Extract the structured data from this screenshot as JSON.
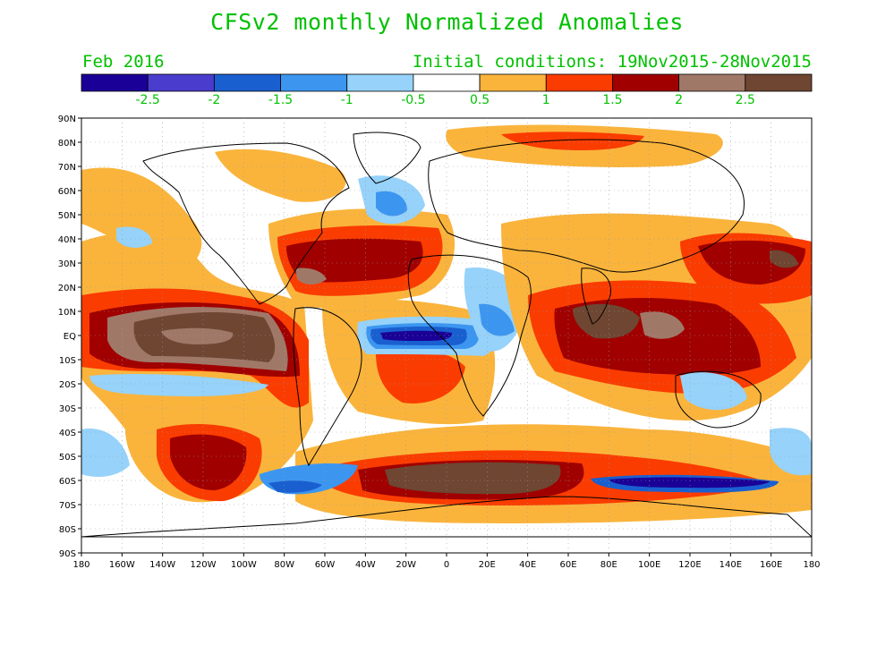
{
  "title": "CFSv2 monthly Normalized Anomalies",
  "month": "Feb 2016",
  "initial_conditions": "Initial conditions: 19Nov2015-28Nov2015",
  "colorbar": {
    "colors": [
      "#1a0096",
      "#4a3ccd",
      "#1a5fd0",
      "#3c96f0",
      "#96d2fa",
      "#ffffff",
      "#fab43c",
      "#fa3c00",
      "#a00000",
      "#a07868",
      "#6e4632"
    ],
    "labels": [
      "-2.5",
      "-2",
      "-1.5",
      "-1",
      "-0.5",
      "0.5",
      "1",
      "1.5",
      "2",
      "2.5"
    ]
  },
  "lat_labels": [
    "90N",
    "80N",
    "70N",
    "60N",
    "50N",
    "40N",
    "30N",
    "20N",
    "10N",
    "EQ",
    "10S",
    "20S",
    "30S",
    "40S",
    "50S",
    "60S",
    "70S",
    "80S",
    "90S"
  ],
  "lon_labels": [
    "180",
    "160W",
    "140W",
    "120W",
    "100W",
    "80W",
    "60W",
    "40W",
    "20W",
    "0",
    "20E",
    "40E",
    "60E",
    "80E",
    "100E",
    "120E",
    "140E",
    "160E",
    "180"
  ]
}
